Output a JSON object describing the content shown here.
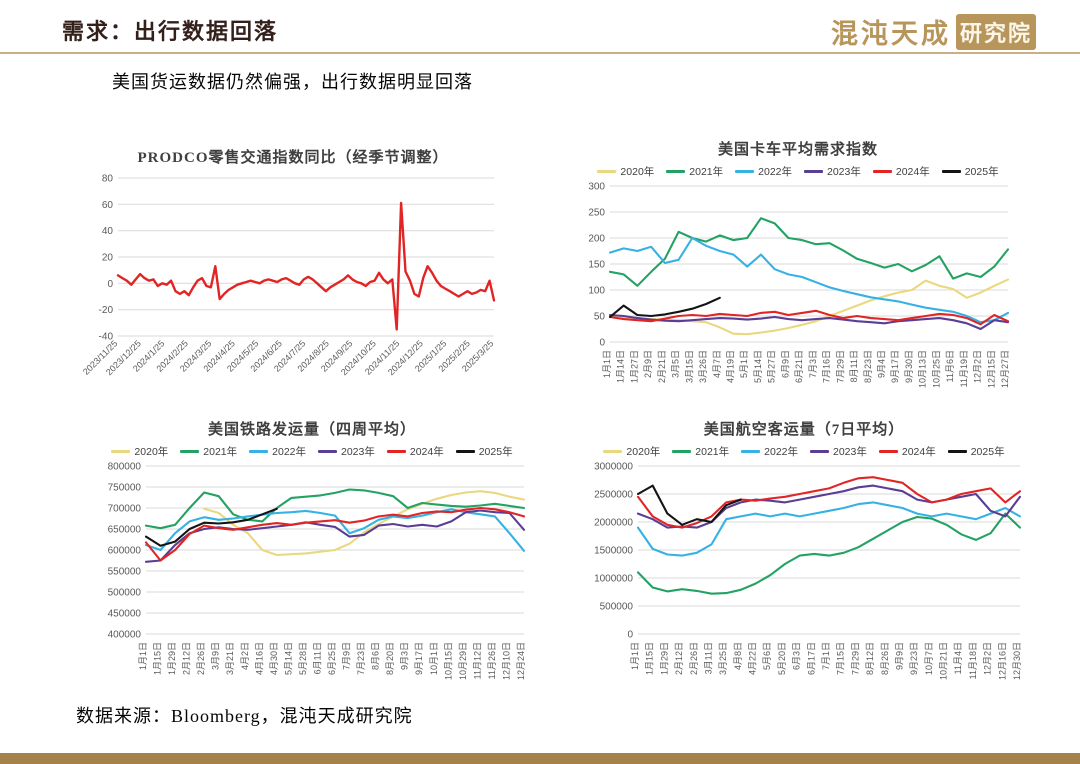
{
  "slide": {
    "title": "需求：出行数据回落",
    "subtitle": "美国货运数据仍然偏强，出行数据明显回落",
    "source": "数据来源：Bloomberg，混沌天成研究院",
    "logo": {
      "brand": "混沌天成",
      "suffix": "研究院"
    }
  },
  "colors": {
    "title_text": "#33201b",
    "gold_rule": "#c9b084",
    "bottom_bar": "#a5824a",
    "logo_gold": "#b8955a",
    "grid": "#d9d9d9",
    "year2020": "#ead87f",
    "year2021": "#23a264",
    "year2022": "#35b1e4",
    "year2023": "#5a3d94",
    "year2024": "#e12525",
    "year2025": "#141414"
  },
  "chart_data": [
    {
      "type": "line",
      "title": "PRODCO零售交通指数同比（经季节调整）",
      "ylim": [
        -40,
        80
      ],
      "y_ticks": [
        80,
        60,
        40,
        20,
        0,
        -20,
        -40
      ],
      "x_label_rotation": -45,
      "legend_visible": false,
      "x_labels": [
        "2023/11/25",
        "2023/12/25",
        "2024/1/25",
        "2024/2/25",
        "2024/3/25",
        "2024/4/25",
        "2024/5/25",
        "2024/6/25",
        "2024/7/25",
        "2024/8/25",
        "2024/9/25",
        "2024/10/25",
        "2024/11/25",
        "2024/12/25",
        "2025/1/25",
        "2025/2/25",
        "2025/3/25"
      ],
      "series": [
        {
          "name": "PRODCO零售交通指数同比",
          "color": "#e12525",
          "width": 2.4,
          "values": [
            6,
            4,
            2,
            -1,
            3,
            7,
            4,
            2,
            3,
            -2,
            0,
            -1,
            2,
            -6,
            -8,
            -6,
            -9,
            -3,
            2,
            4,
            -2,
            -3,
            13,
            -12,
            -8,
            -5,
            -3,
            -1,
            0,
            1,
            2,
            1,
            0,
            2,
            3,
            2,
            1,
            3,
            4,
            2,
            0,
            -1,
            3,
            5,
            3,
            0,
            -3,
            -6,
            -3,
            -1,
            1,
            3,
            6,
            3,
            1,
            0,
            -2,
            1,
            2,
            8,
            3,
            0,
            3,
            -35,
            61,
            9,
            2,
            -8,
            -10,
            4,
            13,
            8,
            2,
            -2,
            -4,
            -6,
            -8,
            -10,
            -8,
            -6,
            -8,
            -7,
            -5,
            -6,
            2,
            -13
          ]
        }
      ]
    },
    {
      "type": "line",
      "title": "美国卡车平均需求指数",
      "ylim": [
        0,
        300
      ],
      "y_ticks": [
        300,
        250,
        200,
        150,
        100,
        50,
        0
      ],
      "x_label_rotation": -90,
      "legend_visible": true,
      "x_labels": [
        "1月1日",
        "1月14日",
        "1月27日",
        "2月9日",
        "2月21日",
        "3月5日",
        "3月15日",
        "3月26日",
        "4月7日",
        "4月19日",
        "5月1日",
        "5月14日",
        "5月27日",
        "6月9日",
        "6月21日",
        "7月3日",
        "7月16日",
        "7月29日",
        "8月11日",
        "8月23日",
        "9月4日",
        "9月17日",
        "9月30日",
        "10月13日",
        "10月25日",
        "11月6日",
        "11月19日",
        "12月2日",
        "12月15日",
        "12月27日"
      ],
      "series": [
        {
          "name": "2020年",
          "color": "#ead87f",
          "values": [
            50,
            48,
            46,
            44,
            43,
            42,
            40,
            38,
            28,
            16,
            15,
            18,
            22,
            27,
            33,
            40,
            50,
            60,
            70,
            80,
            88,
            95,
            100,
            118,
            108,
            102,
            85,
            95,
            108,
            120
          ]
        },
        {
          "name": "2021年",
          "color": "#23a264",
          "values": [
            135,
            130,
            108,
            135,
            160,
            212,
            200,
            193,
            205,
            196,
            200,
            238,
            228,
            200,
            196,
            188,
            190,
            176,
            160,
            152,
            143,
            150,
            136,
            148,
            165,
            122,
            132,
            125,
            145,
            178
          ]
        },
        {
          "name": "2022年",
          "color": "#35b1e4",
          "values": [
            172,
            180,
            175,
            183,
            152,
            158,
            200,
            185,
            175,
            168,
            145,
            168,
            140,
            130,
            125,
            115,
            105,
            98,
            92,
            86,
            82,
            78,
            72,
            66,
            62,
            58,
            50,
            38,
            42,
            56
          ]
        },
        {
          "name": "2023年",
          "color": "#5a3d94",
          "values": [
            52,
            50,
            46,
            43,
            41,
            40,
            42,
            44,
            46,
            45,
            43,
            45,
            48,
            44,
            42,
            44,
            46,
            43,
            40,
            38,
            36,
            40,
            42,
            44,
            46,
            42,
            36,
            25,
            42,
            38
          ]
        },
        {
          "name": "2024年",
          "color": "#e12525",
          "values": [
            48,
            44,
            42,
            40,
            45,
            50,
            52,
            50,
            54,
            52,
            50,
            56,
            58,
            52,
            56,
            60,
            52,
            46,
            50,
            46,
            44,
            42,
            46,
            50,
            54,
            52,
            46,
            34,
            52,
            40
          ]
        },
        {
          "name": "2025年",
          "color": "#141414",
          "values": [
            48,
            70,
            52,
            50,
            53,
            58,
            64,
            73,
            85
          ]
        }
      ]
    },
    {
      "type": "line",
      "title": "美国铁路发运量（四周平均）",
      "ylim": [
        400000,
        800000
      ],
      "y_ticks": [
        800000,
        750000,
        700000,
        650000,
        600000,
        550000,
        500000,
        450000,
        400000
      ],
      "x_label_rotation": -90,
      "legend_visible": true,
      "x_labels": [
        "1月1日",
        "1月15日",
        "1月29日",
        "2月12日",
        "2月26日",
        "3月9日",
        "3月21日",
        "4月2日",
        "4月16日",
        "4月30日",
        "5月14日",
        "5月28日",
        "6月11日",
        "6月25日",
        "7月9日",
        "7月23日",
        "8月6日",
        "8月20日",
        "9月3日",
        "9月17日",
        "10月1日",
        "10月15日",
        "10月29日",
        "11月12日",
        "11月26日",
        "12月10日",
        "12月24日"
      ],
      "series": [
        {
          "name": "2020年",
          "color": "#ead87f",
          "values": [
            null,
            null,
            null,
            null,
            698000,
            688000,
            660000,
            640000,
            600000,
            588000,
            590000,
            592000,
            596000,
            600000,
            615000,
            642000,
            662000,
            680000,
            697000,
            710000,
            722000,
            731000,
            737000,
            740000,
            736000,
            727000,
            720000
          ]
        },
        {
          "name": "2021年",
          "color": "#23a264",
          "values": [
            658000,
            652000,
            660000,
            700000,
            737000,
            728000,
            685000,
            672000,
            668000,
            700000,
            724000,
            727000,
            730000,
            736000,
            744000,
            742000,
            736000,
            728000,
            700000,
            712000,
            708000,
            705000,
            703000,
            706000,
            710000,
            705000,
            700000
          ]
        },
        {
          "name": "2022年",
          "color": "#35b1e4",
          "values": [
            612000,
            600000,
            640000,
            668000,
            678000,
            672000,
            675000,
            680000,
            684000,
            688000,
            690000,
            693000,
            688000,
            682000,
            640000,
            652000,
            672000,
            680000,
            676000,
            682000,
            690000,
            697000,
            690000,
            685000,
            680000,
            640000,
            598000
          ]
        },
        {
          "name": "2023年",
          "color": "#5a3d94",
          "values": [
            572000,
            575000,
            612000,
            640000,
            650000,
            654000,
            650000,
            648000,
            652000,
            656000,
            660000,
            666000,
            660000,
            655000,
            632000,
            636000,
            658000,
            662000,
            656000,
            660000,
            656000,
            668000,
            690000,
            694000,
            690000,
            688000,
            648000
          ]
        },
        {
          "name": "2024年",
          "color": "#e12525",
          "values": [
            618000,
            575000,
            600000,
            638000,
            658000,
            652000,
            648000,
            654000,
            660000,
            664000,
            660000,
            665000,
            668000,
            671000,
            665000,
            670000,
            680000,
            684000,
            680000,
            688000,
            692000,
            690000,
            696000,
            700000,
            697000,
            690000,
            680000
          ]
        },
        {
          "name": "2025年",
          "color": "#141414",
          "values": [
            632000,
            610000,
            620000,
            650000,
            665000,
            663000,
            666000,
            672000,
            685000,
            698000
          ]
        }
      ]
    },
    {
      "type": "line",
      "title": "美国航空客运量（7日平均）",
      "ylim": [
        0,
        3000000
      ],
      "y_ticks": [
        3000000,
        2500000,
        2000000,
        1500000,
        1000000,
        500000,
        0
      ],
      "x_label_rotation": -90,
      "legend_visible": true,
      "x_labels": [
        "1月1日",
        "1月15日",
        "1月29日",
        "2月12日",
        "2月26日",
        "3月11日",
        "3月25日",
        "4月8日",
        "4月22日",
        "5月6日",
        "5月20日",
        "6月3日",
        "6月17日",
        "7月1日",
        "7月15日",
        "7月29日",
        "8月12日",
        "8月26日",
        "9月9日",
        "9月23日",
        "10月7日",
        "10月21日",
        "11月4日",
        "11月18日",
        "12月2日",
        "12月16日",
        "12月30日"
      ],
      "series": [
        {
          "name": "2020年",
          "color": "#ead87f",
          "values": []
        },
        {
          "name": "2021年",
          "color": "#23a264",
          "values": [
            1100000,
            830000,
            760000,
            800000,
            770000,
            720000,
            730000,
            790000,
            900000,
            1050000,
            1250000,
            1400000,
            1430000,
            1400000,
            1450000,
            1550000,
            1700000,
            1850000,
            2000000,
            2090000,
            2060000,
            1950000,
            1780000,
            1680000,
            1800000,
            2150000,
            1900000
          ]
        },
        {
          "name": "2022年",
          "color": "#35b1e4",
          "values": [
            1900000,
            1520000,
            1420000,
            1400000,
            1450000,
            1600000,
            2050000,
            2100000,
            2150000,
            2100000,
            2150000,
            2100000,
            2150000,
            2200000,
            2250000,
            2320000,
            2350000,
            2300000,
            2250000,
            2150000,
            2100000,
            2150000,
            2100000,
            2050000,
            2150000,
            2250000,
            2100000
          ]
        },
        {
          "name": "2023年",
          "color": "#5a3d94",
          "values": [
            2150000,
            2050000,
            1900000,
            1920000,
            1900000,
            2000000,
            2250000,
            2350000,
            2400000,
            2380000,
            2350000,
            2400000,
            2450000,
            2500000,
            2550000,
            2620000,
            2650000,
            2600000,
            2550000,
            2400000,
            2350000,
            2400000,
            2450000,
            2500000,
            2200000,
            2100000,
            2450000
          ]
        },
        {
          "name": "2024年",
          "color": "#e12525",
          "values": [
            2450000,
            2100000,
            1950000,
            1900000,
            1980000,
            2100000,
            2350000,
            2400000,
            2380000,
            2420000,
            2450000,
            2500000,
            2550000,
            2600000,
            2700000,
            2780000,
            2800000,
            2750000,
            2700000,
            2500000,
            2350000,
            2400000,
            2500000,
            2550000,
            2600000,
            2350000,
            2550000
          ]
        },
        {
          "name": "2025年",
          "color": "#141414",
          "values": [
            2500000,
            2650000,
            2150000,
            1950000,
            2050000,
            2000000,
            2300000,
            2400000
          ]
        }
      ]
    }
  ]
}
